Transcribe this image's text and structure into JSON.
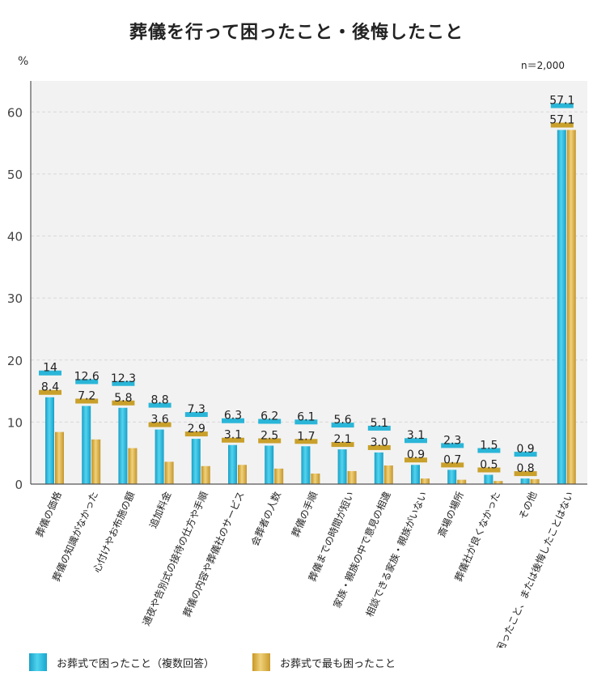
{
  "title": "葬儀を行って困ったこと・後悔したこと",
  "unit": "%",
  "note": "n＝2,000",
  "chart_data": {
    "type": "bar",
    "ylim": [
      0,
      65
    ],
    "yticks": [
      0,
      10,
      20,
      30,
      40,
      50,
      60
    ],
    "grid": true,
    "legend_position": "bottom",
    "categories": [
      "葬儀の価格",
      "葬儀の知識がなかった",
      "心付けやお布施の額",
      "追加料金",
      "通夜や告別式の接待の仕方や手順",
      "葬儀の内容や葬儀社のサービス",
      "会葬者の人数",
      "葬儀の手順",
      "葬儀までの時間が短い",
      "家族・親族の中で意見の相違",
      "相談できる家族・親族がいない",
      "斎場の場所",
      "葬儀社が良くなかった",
      "その他",
      "困ったこと、または後悔したことはない"
    ],
    "series": [
      {
        "name": "お葬式で困ったこと（複数回答）",
        "color": "#25b4d8",
        "values": [
          14,
          12.6,
          12.3,
          8.8,
          7.3,
          6.3,
          6.2,
          6.1,
          5.6,
          5.1,
          3.1,
          2.3,
          1.5,
          0.9,
          57.1
        ],
        "labels": [
          "14",
          "12.6",
          "12.3",
          "8.8",
          "7.3",
          "6.3",
          "6.2",
          "6.1",
          "5.6",
          "5.1",
          "3.1",
          "2.3",
          "1.5",
          "0.9",
          "57.1"
        ]
      },
      {
        "name": "お葬式で最も困ったこと",
        "color": "#d9ae3c",
        "values": [
          8.4,
          7.2,
          5.8,
          3.6,
          2.9,
          3.1,
          2.5,
          1.7,
          2.1,
          3.0,
          0.9,
          0.7,
          0.5,
          0.8,
          57.1
        ],
        "labels": [
          "8.4",
          "7.2",
          "5.8",
          "3.6",
          "2.9",
          "3.1",
          "2.5",
          "1.7",
          "2.1",
          "3.0",
          "0.9",
          "0.7",
          "0.5",
          "0.8",
          "57.1"
        ]
      }
    ]
  }
}
